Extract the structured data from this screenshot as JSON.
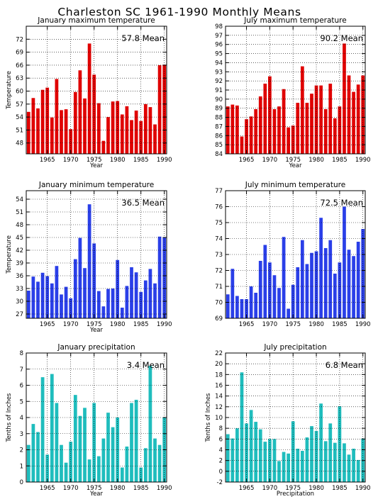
{
  "title": "Charleston SC  1961-1990 Monthly Means",
  "chart_data": [
    {
      "type": "bar",
      "title": "January maximum temperature",
      "mean_label": "57.8 Mean",
      "xlabel": "Year",
      "ylabel": "Temperature",
      "color": "#e00000",
      "xlim": [
        1960.5,
        1990.5
      ],
      "ylim": [
        45.5,
        75
      ],
      "yticks": [
        48,
        51,
        54,
        57,
        60,
        63,
        66,
        69,
        72
      ],
      "xticks": [
        1965,
        1970,
        1975,
        1980,
        1985,
        1990
      ],
      "x": [
        1961,
        1962,
        1963,
        1964,
        1965,
        1966,
        1967,
        1968,
        1969,
        1970,
        1971,
        1972,
        1973,
        1974,
        1975,
        1976,
        1977,
        1978,
        1979,
        1980,
        1981,
        1982,
        1983,
        1984,
        1985,
        1986,
        1987,
        1988,
        1989,
        1990
      ],
      "values": [
        55.2,
        58.4,
        56.0,
        60.3,
        60.8,
        53.9,
        62.8,
        55.6,
        55.8,
        51.2,
        59.8,
        64.8,
        58.3,
        71.0,
        63.8,
        57.2,
        48.5,
        54.0,
        57.6,
        57.7,
        54.6,
        56.5,
        53.3,
        55.5,
        53.1,
        57.0,
        56.3,
        52.3,
        66.0,
        66.1
      ]
    },
    {
      "type": "bar",
      "title": "July maximum temperature",
      "mean_label": "90.2 Mean",
      "xlabel": "Year",
      "ylabel": "",
      "color": "#e00000",
      "xlim": [
        1960.5,
        1990.5
      ],
      "ylim": [
        84,
        98
      ],
      "yticks": [
        84,
        85,
        86,
        87,
        88,
        89,
        90,
        91,
        92,
        93,
        94,
        95,
        96,
        97,
        98
      ],
      "xticks": [
        1965,
        1970,
        1975,
        1980,
        1985,
        1990
      ],
      "x": [
        1961,
        1962,
        1963,
        1964,
        1965,
        1966,
        1967,
        1968,
        1969,
        1970,
        1971,
        1972,
        1973,
        1974,
        1975,
        1976,
        1977,
        1978,
        1979,
        1980,
        1981,
        1982,
        1983,
        1984,
        1985,
        1986,
        1987,
        1988,
        1989,
        1990
      ],
      "values": [
        89.2,
        89.4,
        89.3,
        85.9,
        87.8,
        88.1,
        88.9,
        90.3,
        91.7,
        92.5,
        88.9,
        89.2,
        91.1,
        86.9,
        87.1,
        89.6,
        93.6,
        89.6,
        90.6,
        91.5,
        91.5,
        88.9,
        91.7,
        87.9,
        89.2,
        96.1,
        92.6,
        90.8,
        91.6,
        92.6
      ]
    },
    {
      "type": "bar",
      "title": "January minimum temperature",
      "mean_label": "36.5 Mean",
      "xlabel": "Year",
      "ylabel": "Temperature",
      "color": "#2a3fe8",
      "xlim": [
        1960.5,
        1990.5
      ],
      "ylim": [
        26,
        56
      ],
      "yticks": [
        27,
        30,
        33,
        36,
        39,
        42,
        45,
        48,
        51,
        54
      ],
      "xticks": [
        1965,
        1970,
        1975,
        1980,
        1985,
        1990
      ],
      "x": [
        1961,
        1962,
        1963,
        1964,
        1965,
        1966,
        1967,
        1968,
        1969,
        1970,
        1971,
        1972,
        1973,
        1974,
        1975,
        1976,
        1977,
        1978,
        1979,
        1980,
        1981,
        1982,
        1983,
        1984,
        1985,
        1986,
        1987,
        1988,
        1989,
        1990
      ],
      "values": [
        32.5,
        35.8,
        34.6,
        36.7,
        35.9,
        34.2,
        38.3,
        31.6,
        33.4,
        30.7,
        39.9,
        44.9,
        37.8,
        52.8,
        43.6,
        32.4,
        28.8,
        32.9,
        33.0,
        39.7,
        28.5,
        33.6,
        38.0,
        36.8,
        32.2,
        34.9,
        37.6,
        34.2,
        45.2,
        45.0
      ]
    },
    {
      "type": "bar",
      "title": "July minimum temperature",
      "mean_label": "72.5 Mean",
      "xlabel": "",
      "ylabel": "",
      "color": "#2a3fe8",
      "xlim": [
        1960.5,
        1990.5
      ],
      "ylim": [
        69,
        77
      ],
      "yticks": [
        69,
        70,
        71,
        72,
        73,
        74,
        75,
        76,
        77
      ],
      "xticks": [
        1965,
        1970,
        1975,
        1980,
        1985,
        1990
      ],
      "x": [
        1961,
        1962,
        1963,
        1964,
        1965,
        1966,
        1967,
        1968,
        1969,
        1970,
        1971,
        1972,
        1973,
        1974,
        1975,
        1976,
        1977,
        1978,
        1979,
        1980,
        1981,
        1982,
        1983,
        1984,
        1985,
        1986,
        1987,
        1988,
        1989,
        1990
      ],
      "values": [
        70.5,
        72.1,
        70.4,
        70.2,
        70.2,
        71.0,
        70.6,
        72.6,
        73.6,
        72.5,
        71.7,
        70.9,
        74.1,
        69.6,
        71.1,
        72.2,
        73.9,
        72.4,
        73.1,
        73.2,
        75.3,
        73.4,
        73.9,
        71.8,
        72.5,
        76.0,
        73.3,
        72.9,
        73.8,
        74.6
      ]
    },
    {
      "type": "bar",
      "title": "January precipitation",
      "mean_label": "3.4 Mean",
      "xlabel": "Year",
      "ylabel": "Tenths of Inches",
      "color": "#1fbdbd",
      "xlim": [
        1960.5,
        1990.5
      ],
      "ylim": [
        0,
        8
      ],
      "yticks": [
        0,
        1,
        2,
        3,
        4,
        5,
        6,
        7,
        8
      ],
      "xticks": [
        1965,
        1970,
        1975,
        1980,
        1985,
        1990
      ],
      "x": [
        1961,
        1962,
        1963,
        1964,
        1965,
        1966,
        1967,
        1968,
        1969,
        1970,
        1971,
        1972,
        1973,
        1974,
        1975,
        1976,
        1977,
        1978,
        1979,
        1980,
        1981,
        1982,
        1983,
        1984,
        1985,
        1986,
        1987,
        1988,
        1989,
        1990
      ],
      "values": [
        2.3,
        3.6,
        3.1,
        6.5,
        1.7,
        6.7,
        4.9,
        2.3,
        1.2,
        2.5,
        5.4,
        4.1,
        4.6,
        1.4,
        4.9,
        1.6,
        2.7,
        4.3,
        3.4,
        4.0,
        0.9,
        2.2,
        4.9,
        5.1,
        0.9,
        2.1,
        7.2,
        2.7,
        2.3,
        4.0
      ]
    },
    {
      "type": "bar",
      "title": "July precipitation",
      "mean_label": "6.8 Mean",
      "xlabel": "Precipitation",
      "ylabel": "Tenths of Inches",
      "color": "#1fbdbd",
      "xlim": [
        1960.5,
        1990.5
      ],
      "ylim": [
        -2,
        22
      ],
      "yticks": [
        -2,
        0,
        2,
        4,
        6,
        8,
        10,
        12,
        14,
        16,
        18,
        20,
        22
      ],
      "xticks": [
        1965,
        1970,
        1975,
        1980,
        1985,
        1990
      ],
      "x": [
        1961,
        1962,
        1963,
        1964,
        1965,
        1966,
        1967,
        1968,
        1969,
        1970,
        1971,
        1972,
        1973,
        1974,
        1975,
        1976,
        1977,
        1978,
        1979,
        1980,
        1981,
        1982,
        1983,
        1984,
        1985,
        1986,
        1987,
        1988,
        1989,
        1990
      ],
      "values": [
        6.9,
        6.1,
        8.0,
        18.4,
        8.9,
        11.4,
        9.2,
        7.8,
        5.5,
        6.0,
        6.0,
        1.9,
        3.6,
        3.3,
        9.3,
        4.2,
        3.8,
        6.3,
        8.4,
        7.5,
        12.6,
        5.6,
        8.9,
        5.3,
        12.1,
        5.2,
        3.1,
        4.2,
        2.1,
        6.1
      ]
    }
  ]
}
